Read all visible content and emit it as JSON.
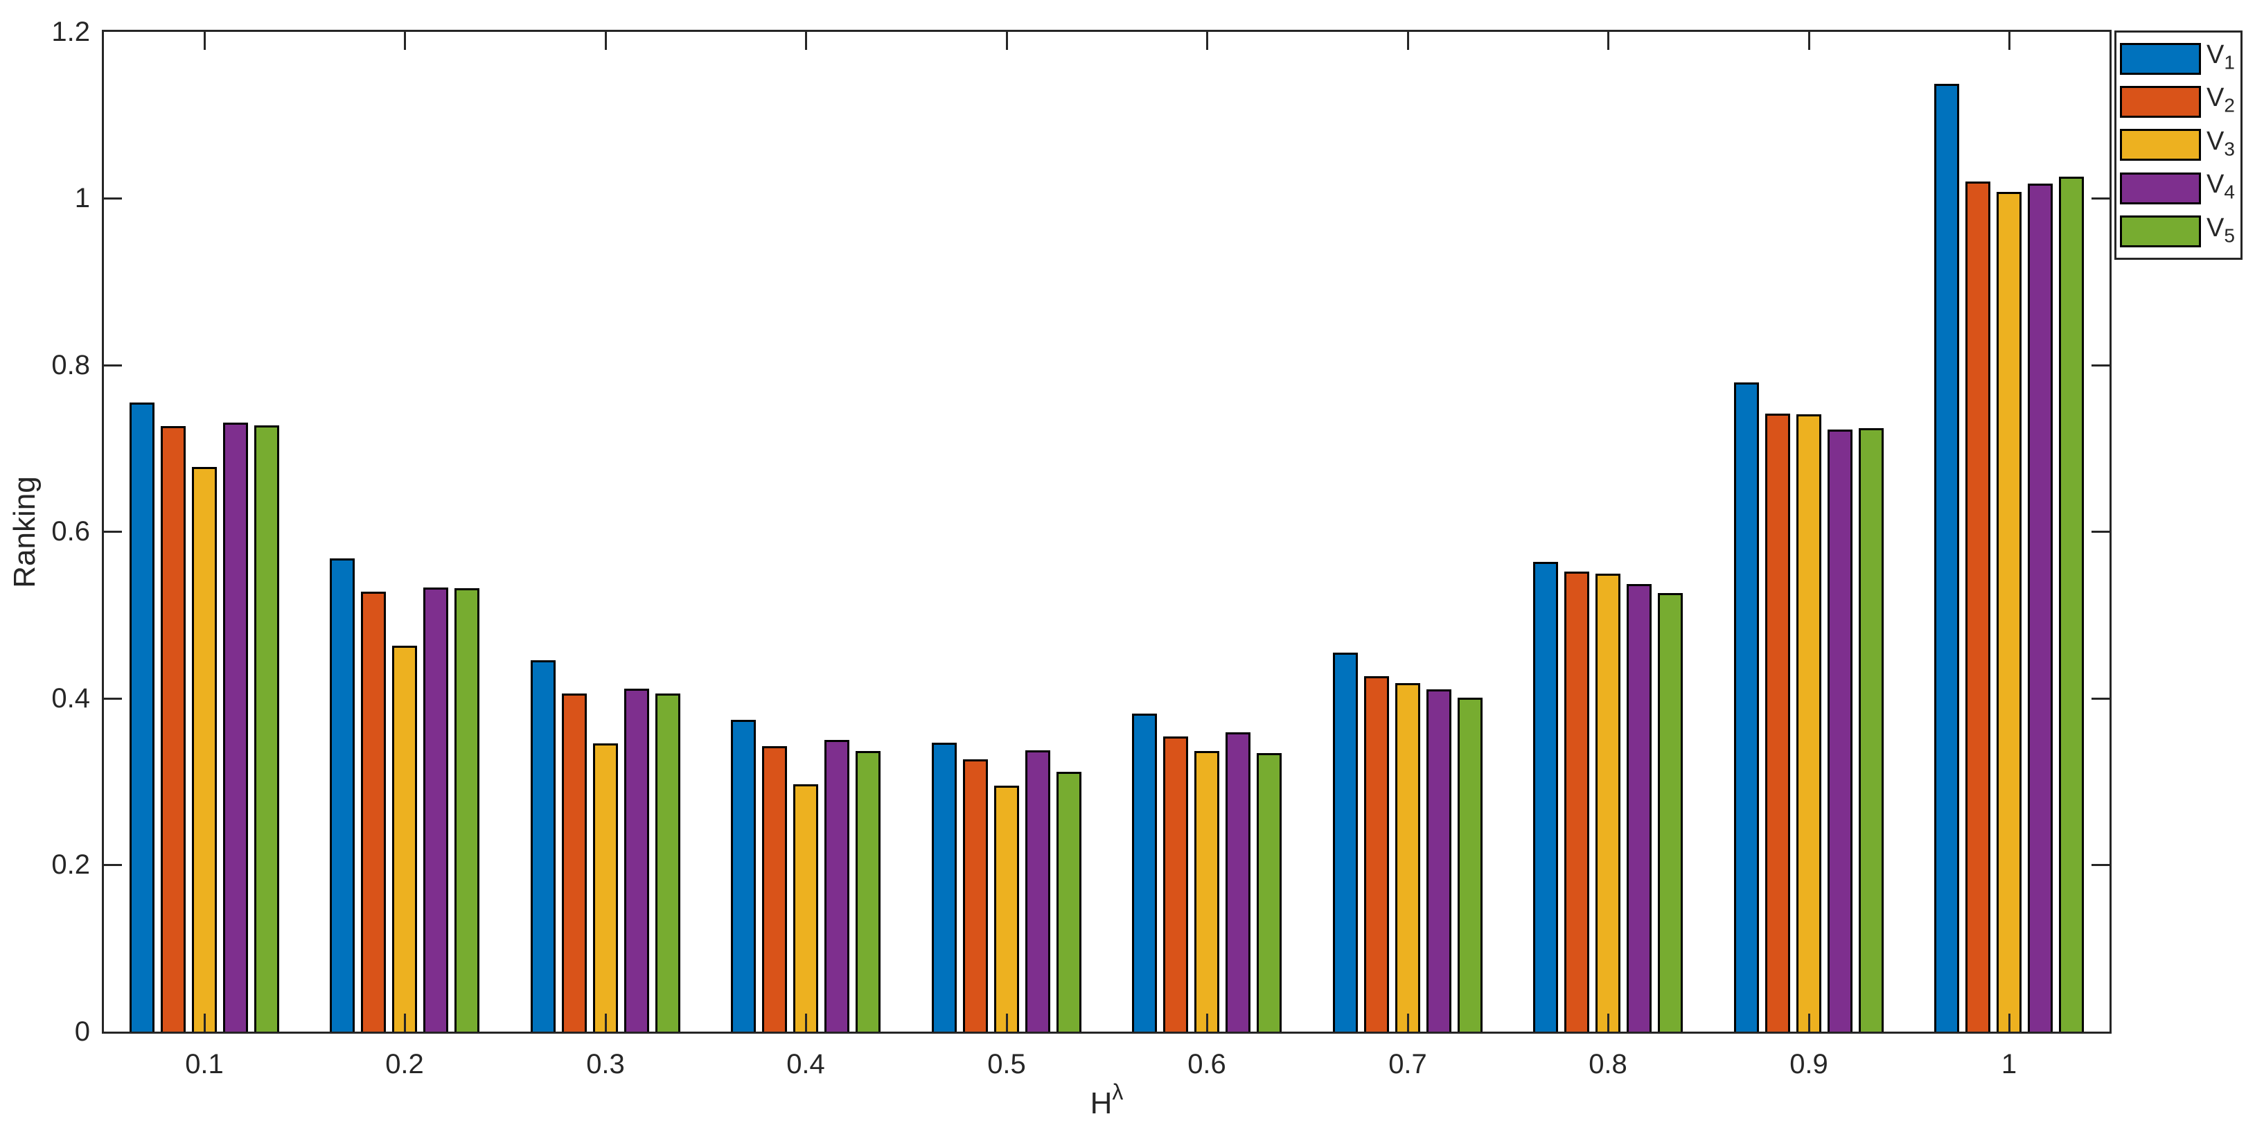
{
  "chart_data": {
    "type": "bar",
    "title": "",
    "xlabel_base": "H",
    "xlabel_sup": "λ",
    "ylabel": "Ranking",
    "categories": [
      "0.1",
      "0.2",
      "0.3",
      "0.4",
      "0.5",
      "0.6",
      "0.7",
      "0.8",
      "0.9",
      "1"
    ],
    "series": [
      {
        "name": "V",
        "sub": "1",
        "color": "#0072BD",
        "values": [
          0.755,
          0.568,
          0.446,
          0.374,
          0.347,
          0.382,
          0.455,
          0.564,
          0.779,
          1.138
        ]
      },
      {
        "name": "V",
        "sub": "2",
        "color": "#D95319",
        "values": [
          0.727,
          0.528,
          0.406,
          0.343,
          0.327,
          0.354,
          0.427,
          0.552,
          0.742,
          1.02
        ]
      },
      {
        "name": "V",
        "sub": "3",
        "color": "#EDB120",
        "values": [
          0.678,
          0.463,
          0.346,
          0.297,
          0.295,
          0.337,
          0.418,
          0.55,
          0.741,
          1.008
        ]
      },
      {
        "name": "V",
        "sub": "4",
        "color": "#7E2F8E",
        "values": [
          0.731,
          0.533,
          0.412,
          0.35,
          0.338,
          0.359,
          0.411,
          0.537,
          0.723,
          1.018
        ]
      },
      {
        "name": "V",
        "sub": "5",
        "color": "#77AC30",
        "values": [
          0.728,
          0.532,
          0.406,
          0.337,
          0.312,
          0.334,
          0.401,
          0.526,
          0.724,
          1.026
        ]
      }
    ],
    "ylim": [
      0,
      1.2
    ],
    "ytick_labels": [
      "0",
      "0.2",
      "0.4",
      "0.6",
      "0.8",
      "1",
      "1.2"
    ],
    "grid": false,
    "legend_position": "top-right",
    "axis_color": "#262626",
    "bar_edge_color": "#000000",
    "background_color": "#ffffff"
  }
}
